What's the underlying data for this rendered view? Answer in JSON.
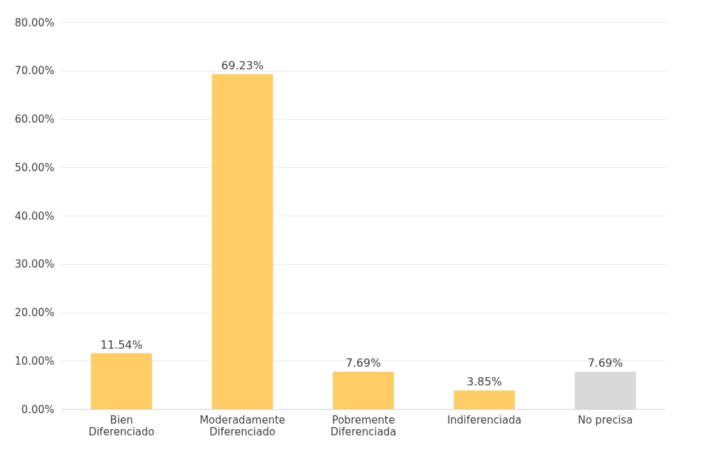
{
  "chart_data": {
    "type": "bar",
    "categories": [
      "Bien Diferenciado",
      "Moderadamente Diferenciado",
      "Pobremente Diferenciada",
      "Indiferenciada",
      "No precisa"
    ],
    "values": [
      11.54,
      69.23,
      7.69,
      3.85,
      7.69
    ],
    "colors": [
      "#ffcc66",
      "#ffcc66",
      "#ffcc66",
      "#ffcc66",
      "#d9d9d9"
    ],
    "value_labels": [
      "11.54%",
      "69.23%",
      "7.69%",
      "3.85%",
      "7.69%"
    ],
    "ylim": [
      0,
      80
    ],
    "yticks": [
      {
        "value": 0,
        "label": "0.00%"
      },
      {
        "value": 10,
        "label": "10.00%"
      },
      {
        "value": 20,
        "label": "20.00%"
      },
      {
        "value": 30,
        "label": "30.00%"
      },
      {
        "value": 40,
        "label": "40.00%"
      },
      {
        "value": 50,
        "label": "50.00%"
      },
      {
        "value": 60,
        "label": "60.00%"
      },
      {
        "value": 70,
        "label": "70.00%"
      },
      {
        "value": 80,
        "label": "80.00%"
      }
    ],
    "grid": "y",
    "legend": false
  }
}
